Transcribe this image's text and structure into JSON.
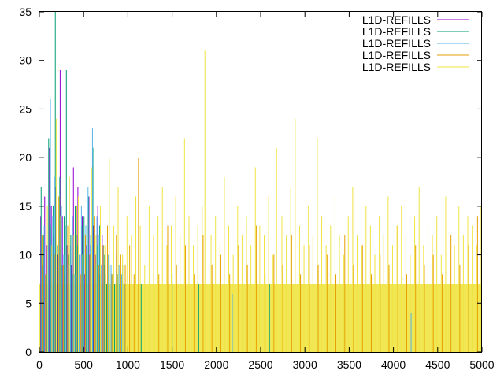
{
  "chart_data": {
    "type": "line",
    "title": "",
    "xlabel": "",
    "ylabel": "",
    "xlim": [
      0,
      5000
    ],
    "ylim": [
      0,
      35
    ],
    "xticks": [
      "0",
      "500",
      "1000",
      "1500",
      "2000",
      "2500",
      "3000",
      "3500",
      "4000",
      "4500",
      "5000"
    ],
    "yticks": [
      "0",
      "5",
      "10",
      "15",
      "20",
      "25",
      "30",
      "35"
    ],
    "grid": false,
    "legend_position": "top-right",
    "series": [
      {
        "name": "L1D-REFILLS",
        "color": "#9400d3",
        "style": "impulses",
        "x": [
          15,
          35,
          60,
          85,
          110,
          135,
          160,
          185,
          210,
          235,
          260,
          285,
          310,
          335,
          360,
          385,
          410,
          435,
          460,
          485,
          510,
          535,
          560,
          585,
          610,
          635,
          660,
          685,
          710,
          735
        ],
        "y": [
          14,
          9,
          16,
          11,
          21,
          15,
          12,
          17,
          10,
          29,
          14,
          8,
          11,
          13,
          9,
          19,
          12,
          17,
          10,
          14,
          8,
          11,
          16,
          9,
          13,
          10,
          15,
          8,
          12,
          9
        ]
      },
      {
        "name": "L1D-REFILLS",
        "color": "#009e73",
        "style": "impulses",
        "x": [
          20,
          50,
          80,
          105,
          130,
          155,
          180,
          205,
          230,
          255,
          280,
          305,
          330,
          355,
          380,
          405,
          430,
          455,
          480,
          505,
          530,
          555,
          580,
          605,
          630,
          655,
          680,
          705,
          730,
          760,
          790,
          820,
          850,
          880,
          910,
          940,
          1150,
          1500,
          1800,
          2300,
          2600
        ],
        "y": [
          17,
          12,
          8,
          22,
          13,
          15,
          35,
          11,
          18,
          9,
          14,
          29,
          10,
          12,
          8,
          15,
          11,
          9,
          13,
          14,
          10,
          16,
          12,
          21,
          9,
          11,
          13,
          8,
          10,
          7,
          9,
          8,
          7,
          8,
          7,
          9,
          7,
          8,
          7,
          14,
          7
        ]
      },
      {
        "name": "L1D-REFILLS",
        "color": "#56b4e9",
        "style": "impulses",
        "x": [
          25,
          55,
          75,
          100,
          125,
          150,
          175,
          200,
          225,
          250,
          275,
          300,
          325,
          350,
          375,
          400,
          425,
          450,
          475,
          500,
          525,
          550,
          575,
          600,
          625,
          650,
          675,
          700,
          725,
          750,
          780,
          810,
          840,
          870,
          900,
          930,
          960,
          2180,
          4200
        ],
        "y": [
          9,
          13,
          16,
          11,
          26,
          14,
          18,
          32,
          12,
          15,
          10,
          13,
          9,
          11,
          14,
          8,
          12,
          10,
          15,
          9,
          13,
          17,
          11,
          23,
          10,
          14,
          12,
          9,
          11,
          8,
          10,
          9,
          8,
          10,
          9,
          8,
          7,
          6,
          4
        ]
      },
      {
        "name": "L1D-REFILLS",
        "color": "#e69f00",
        "style": "impulses",
        "x": [
          30,
          70,
          120,
          170,
          220,
          270,
          320,
          370,
          420,
          470,
          520,
          570,
          620,
          670,
          720,
          770,
          820,
          870,
          920,
          970,
          1020,
          1070,
          1120,
          1170,
          1250,
          1350,
          1450,
          1550,
          1650,
          1750,
          1850,
          1950,
          2050,
          2150,
          2250,
          2350,
          2450,
          2550,
          2650,
          2750,
          2850,
          2950,
          3050,
          3150,
          3250,
          3350,
          3450,
          3550,
          3650,
          3750,
          3850,
          3950,
          4050,
          4150,
          4250,
          4350,
          4450,
          4550,
          4650,
          4750,
          4850,
          4950
        ],
        "y": [
          12,
          8,
          14,
          10,
          16,
          9,
          13,
          11,
          15,
          8,
          12,
          10,
          14,
          9,
          11,
          13,
          8,
          12,
          10,
          9,
          11,
          8,
          20,
          9,
          10,
          8,
          13,
          9,
          11,
          8,
          12,
          9,
          10,
          8,
          11,
          9,
          13,
          8,
          10,
          9,
          12,
          8,
          11,
          9,
          10,
          8,
          12,
          9,
          11,
          8,
          10,
          9,
          13,
          8,
          11,
          9,
          10,
          8,
          12,
          9,
          11,
          14
        ]
      },
      {
        "name": "L1D-REFILLS",
        "color": "#f0e442",
        "style": "impulses",
        "x": [
          40,
          90,
          140,
          190,
          240,
          290,
          340,
          390,
          440,
          490,
          540,
          590,
          640,
          690,
          740,
          790,
          840,
          890,
          940,
          990,
          1040,
          1090,
          1140,
          1190,
          1240,
          1290,
          1340,
          1390,
          1440,
          1490,
          1540,
          1590,
          1640,
          1690,
          1740,
          1790,
          1840,
          1870,
          1940,
          1990,
          2040,
          2090,
          2140,
          2190,
          2240,
          2290,
          2340,
          2390,
          2440,
          2490,
          2540,
          2590,
          2640,
          2680,
          2740,
          2790,
          2840,
          2890,
          2940,
          2990,
          3040,
          3090,
          3140,
          3190,
          3240,
          3290,
          3340,
          3390,
          3440,
          3490,
          3540,
          3590,
          3640,
          3690,
          3740,
          3790,
          3840,
          3890,
          3940,
          3990,
          4040,
          4090,
          4140,
          4190,
          4240,
          4290,
          4340,
          4390,
          4440,
          4490,
          4540,
          4590,
          4640,
          4690,
          4740,
          4790,
          4840,
          4890,
          4940,
          4990
        ],
        "y": [
          20,
          15,
          11,
          24,
          14,
          13,
          18,
          12,
          16,
          10,
          14,
          19,
          12,
          15,
          11,
          20,
          13,
          17,
          10,
          14,
          12,
          16,
          13,
          9,
          15,
          12,
          14,
          17,
          11,
          13,
          16,
          12,
          22,
          14,
          11,
          13,
          15,
          31,
          12,
          14,
          11,
          18,
          13,
          10,
          15,
          12,
          14,
          11,
          19,
          13,
          12,
          16,
          10,
          21,
          14,
          12,
          17,
          24,
          13,
          11,
          15,
          12,
          22,
          14,
          11,
          13,
          16,
          12,
          10,
          14,
          17,
          12,
          11,
          15,
          13,
          10,
          14,
          12,
          16,
          11,
          13,
          15,
          12,
          10,
          14,
          17,
          11,
          13,
          12,
          14,
          10,
          16,
          13,
          11,
          15,
          12,
          14,
          13,
          11,
          15
        ]
      }
    ]
  }
}
